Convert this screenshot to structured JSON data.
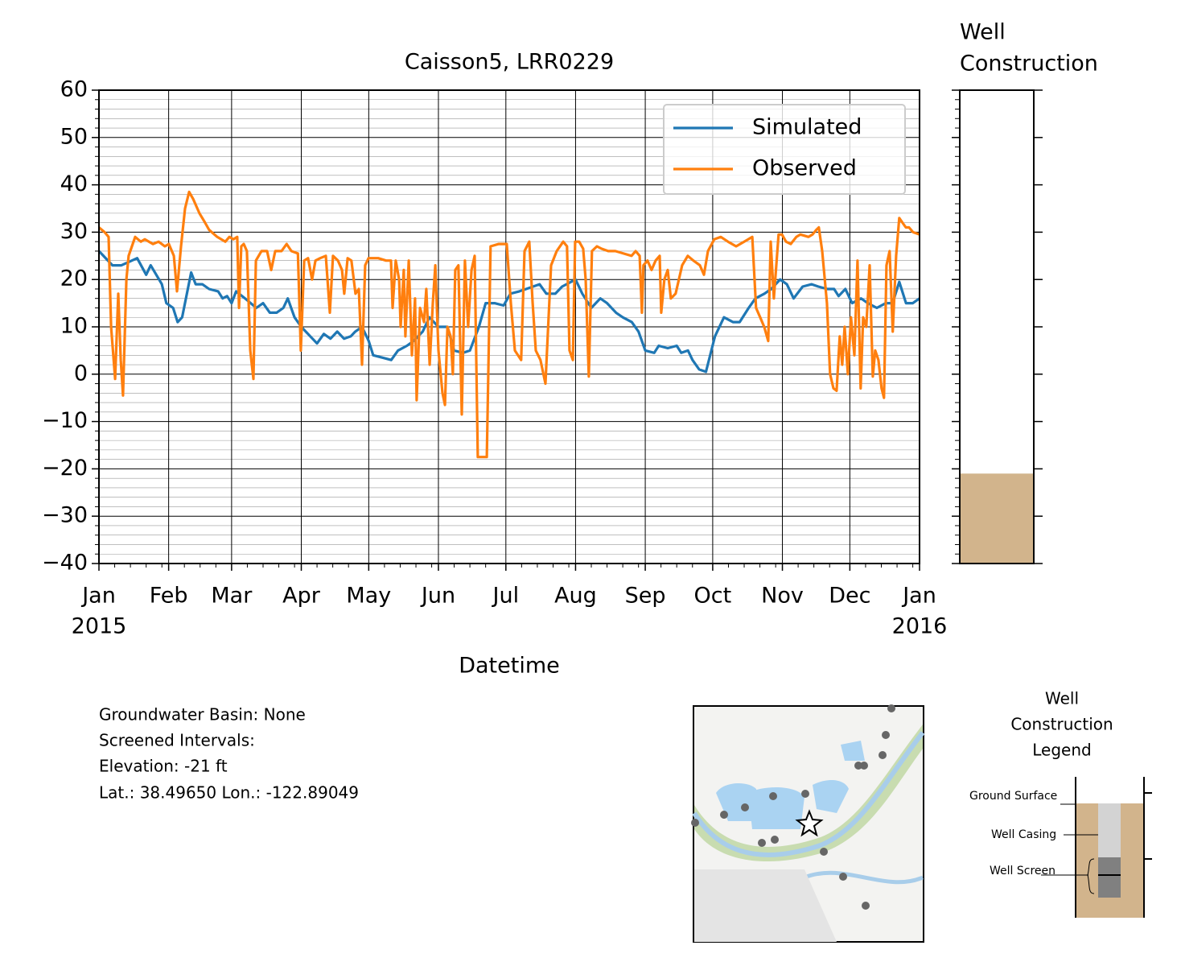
{
  "chart_data": {
    "type": "line",
    "title": "Caisson5, LRR0229",
    "x_label": "Datetime",
    "xlim": [
      0,
      365
    ],
    "xticks": [
      {
        "value": 0,
        "label": "Jan"
      },
      {
        "value": 31,
        "label": "Feb"
      },
      {
        "value": 59,
        "label": "Mar"
      },
      {
        "value": 90,
        "label": "Apr"
      },
      {
        "value": 120,
        "label": "May"
      },
      {
        "value": 151,
        "label": "Jun"
      },
      {
        "value": 181,
        "label": "Jul"
      },
      {
        "value": 212,
        "label": "Aug"
      },
      {
        "value": 243,
        "label": "Sep"
      },
      {
        "value": 273,
        "label": "Oct"
      },
      {
        "value": 304,
        "label": "Nov"
      },
      {
        "value": 334,
        "label": "Dec"
      },
      {
        "value": 365,
        "label": "Jan"
      }
    ],
    "x_year_labels": [
      {
        "value": 0,
        "label": "2015"
      },
      {
        "value": 365,
        "label": "2016"
      }
    ],
    "ylim": [
      -40,
      60
    ],
    "yticks": [
      {
        "value": -40,
        "label": "−40"
      },
      {
        "value": -30,
        "label": "−30"
      },
      {
        "value": -20,
        "label": "−20"
      },
      {
        "value": -10,
        "label": "−10"
      },
      0,
      10,
      20,
      30,
      40,
      50,
      60
    ],
    "grid": true,
    "legend": "upper right",
    "series": [
      {
        "name": "Simulated",
        "color": "#1f77b4",
        "x": [
          0,
          6,
          10,
          17,
          21,
          23,
          28,
          30,
          33,
          35,
          37,
          41,
          43,
          46,
          49,
          53,
          55,
          57,
          59,
          61,
          65,
          70,
          73,
          76,
          79,
          82,
          84,
          87,
          90,
          94,
          97,
          100,
          103,
          106,
          109,
          112,
          114,
          117,
          120,
          122,
          126,
          130,
          133,
          137,
          140,
          144,
          147,
          151,
          155,
          158,
          162,
          165,
          169,
          172,
          176,
          180,
          183,
          187,
          190,
          196,
          199,
          203,
          206,
          212,
          215,
          219,
          223,
          226,
          230,
          233,
          237,
          240,
          243,
          247,
          249,
          253,
          257,
          259,
          262,
          264,
          267,
          270,
          274,
          278,
          282,
          285,
          289,
          292,
          296,
          299,
          303,
          306,
          309,
          313,
          317,
          320,
          324,
          327,
          329,
          332,
          335,
          339,
          342,
          346,
          350,
          353,
          356,
          359,
          362,
          365
        ],
        "values": [
          26,
          23,
          23,
          24.5,
          21,
          23,
          19,
          15,
          14,
          11,
          12,
          21.5,
          19,
          19,
          18,
          17.5,
          16,
          16.5,
          15,
          17.5,
          16,
          14,
          15,
          13,
          13,
          14,
          16,
          12,
          10,
          8,
          6.5,
          8.5,
          7.5,
          9,
          7.5,
          8,
          9,
          10,
          7,
          4,
          3.5,
          3,
          5,
          6,
          7,
          9,
          12,
          10,
          10,
          5,
          4.5,
          5,
          10,
          15,
          15,
          14.5,
          17,
          17.5,
          18,
          19,
          17,
          17,
          18.5,
          20,
          17,
          14,
          16,
          15,
          13,
          12,
          11,
          9,
          5,
          4.5,
          6,
          5.5,
          6,
          4.5,
          5,
          3,
          1,
          0.5,
          8,
          12,
          11,
          11,
          14,
          16,
          17,
          18,
          20,
          19,
          16,
          18.5,
          19,
          18.5,
          18,
          18,
          16.5,
          18,
          15,
          16,
          15,
          14,
          15,
          15,
          19.5,
          15,
          15,
          16
        ]
      },
      {
        "name": "Observed",
        "color": "#ff7f0e",
        "x": [
          0,
          2.5,
          4.3,
          5.4,
          7.2,
          8.6,
          9.7,
          10.7,
          12.2,
          13.2,
          16.1,
          18.6,
          20.4,
          24,
          26.5,
          29.3,
          31.1,
          33.3,
          34.7,
          36.5,
          38.3,
          40.1,
          41.9,
          44.7,
          47.2,
          49,
          52.6,
          56.2,
          58,
          59.8,
          61.5,
          62.3,
          63.3,
          64.4,
          65.8,
          67.3,
          68.7,
          69.8,
          72.3,
          74.8,
          76.6,
          78.4,
          81.2,
          83.5,
          85.6,
          88.5,
          89.8,
          91.3,
          93,
          94.8,
          96.3,
          98.4,
          100.9,
          102.7,
          104.1,
          106.3,
          108.1,
          109.1,
          110.6,
          112.3,
          114.1,
          115.6,
          117,
          118.4,
          119.9,
          124.2,
          127.7,
          129.9,
          130.6,
          132,
          133.5,
          134.2,
          135.6,
          136.3,
          137.8,
          139.2,
          140.6,
          141.3,
          142.8,
          144.6,
          145.6,
          147.1,
          148.5,
          149.6,
          151,
          152.8,
          153.9,
          155,
          156.4,
          157.4,
          158.5,
          159.9,
          161.4,
          162.8,
          164.2,
          165.7,
          167.1,
          168.5,
          170.7,
          172.5,
          174.2,
          177.8,
          181.4,
          183.2,
          185,
          187.8,
          189.3,
          191.4,
          192.9,
          194.3,
          196.4,
          198.6,
          201.1,
          203.6,
          206.5,
          208.2,
          209.3,
          210.8,
          211.8,
          213.6,
          215.4,
          216.5,
          217.9,
          219.3,
          221.5,
          223.6,
          226.5,
          229.7,
          233.3,
          236.9,
          238.7,
          240.5,
          241.5,
          242.2,
          244,
          245.8,
          247.6,
          249.4,
          250.1,
          251.5,
          253,
          254.4,
          256.5,
          259.4,
          261.9,
          264.4,
          267.3,
          269.1,
          270.9,
          273.7,
          276.6,
          279.8,
          283.4,
          287,
          290.6,
          292.3,
          294.1,
          295.9,
          297.7,
          298.8,
          300.2,
          302.3,
          303.8,
          305.6,
          307.7,
          310.2,
          312,
          315.6,
          317.4,
          319.1,
          320.2,
          321.7,
          323.8,
          325.2,
          326.7,
          328.1,
          329.5,
          330.6,
          331.7,
          333.1,
          334.5,
          336,
          337.4,
          338.8,
          339.9,
          341.3,
          342.8,
          344.2,
          345.3,
          346.7,
          348.1,
          349.2,
          350.3,
          351.7,
          353.1,
          354.6,
          356,
          357.4,
          358.9,
          360.3,
          362.1,
          365
        ],
        "values": [
          31,
          30,
          29,
          10,
          -1,
          17,
          3,
          -4.5,
          20,
          25,
          29,
          28,
          28.5,
          27.5,
          28,
          27,
          27.5,
          25,
          17.5,
          27,
          35,
          38.5,
          37,
          34,
          32,
          30.5,
          29,
          28,
          29,
          28.5,
          29,
          14,
          27,
          27.5,
          26,
          5,
          -1,
          24,
          26,
          26,
          22,
          26,
          26,
          27.5,
          26,
          25.5,
          5,
          24,
          24.5,
          20,
          24,
          24.5,
          25,
          13,
          25,
          24,
          22,
          17,
          24.5,
          24,
          17,
          18,
          2,
          23,
          24.5,
          24.5,
          24,
          24,
          14,
          24,
          20,
          10,
          22,
          8,
          24,
          4,
          16,
          -5.5,
          14,
          11,
          18,
          2,
          15,
          23,
          5,
          -4,
          -6.5,
          10,
          8,
          0,
          22,
          23,
          -8.5,
          24,
          10,
          22,
          25,
          -17.5,
          -17.5,
          -17.5,
          27,
          27.5,
          27.5,
          15,
          5,
          3,
          26,
          28,
          15,
          5,
          3,
          -2,
          23,
          26,
          28,
          27,
          5,
          3,
          28,
          28,
          26.5,
          20,
          -0.5,
          26,
          27,
          26.5,
          26,
          26,
          25.5,
          25,
          26,
          25,
          13,
          23,
          24,
          22,
          24,
          25,
          13,
          20,
          22,
          16,
          17,
          23,
          25,
          24,
          23,
          21,
          26,
          28.5,
          29,
          28,
          27,
          28,
          29,
          14,
          12,
          10,
          7,
          28,
          16,
          29.5,
          29.5,
          28,
          27.5,
          29,
          29.5,
          29,
          29.5,
          30.5,
          31,
          26,
          15,
          0,
          -3,
          -3.5,
          8,
          2,
          10,
          0,
          12,
          4,
          24,
          -3,
          12,
          10,
          23,
          -0.5,
          5,
          3,
          -3,
          -5,
          23,
          26,
          9,
          25,
          33,
          32,
          31,
          31,
          30,
          29.5
        ]
      }
    ]
  },
  "well_construction": {
    "title": [
      "Well",
      "Construction"
    ],
    "elevation": -21,
    "color": "#d2b48c"
  },
  "info": [
    "Groundwater Basin: None",
    "Screened Intervals:",
    "Elevation: -21 ft",
    "Lat.: 38.49650 Lon.: -122.89049"
  ],
  "legend_diagram": {
    "title": [
      "Well",
      "Construction",
      "Legend"
    ],
    "labels": [
      "Ground Surface",
      "Well Casing",
      "Well Screen"
    ]
  }
}
